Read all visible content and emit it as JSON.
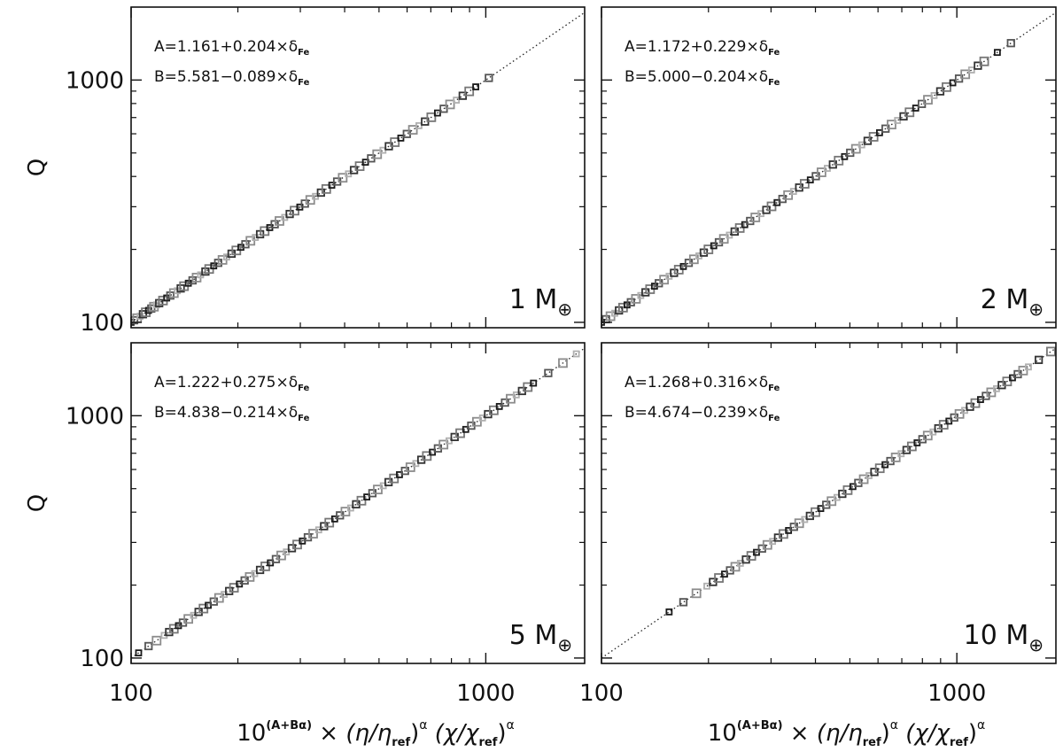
{
  "chart_data": [
    {
      "type": "scatter",
      "scale": "log-log",
      "panel_label": "1 M",
      "eq_a": "A=1.161+0.204×δ",
      "eq_b": "B=5.581−0.089×δ",
      "eq_sub": "Fe",
      "xlim": [
        100,
        1900
      ],
      "ylim": [
        95,
        2000
      ],
      "x_ticks": [
        100,
        1000
      ],
      "y_ticks": [
        100,
        1000
      ],
      "ylabel": "Q",
      "reference_line": "y = x (dotted)",
      "x": [
        100,
        102,
        104,
        106,
        108,
        110,
        112,
        114,
        116,
        118,
        120,
        123,
        126,
        129,
        132,
        135,
        138,
        141,
        145,
        149,
        153,
        157,
        162,
        166,
        171,
        176,
        181,
        186,
        192,
        198,
        204,
        210,
        217,
        224,
        231,
        238,
        246,
        254,
        262,
        271,
        280,
        289,
        299,
        309,
        320,
        331,
        343,
        355,
        368,
        381,
        395,
        410,
        425,
        441,
        458,
        475,
        494,
        513,
        533,
        554,
        576,
        599,
        623,
        648,
        674,
        702,
        731,
        761,
        793,
        826,
        861,
        898,
        937,
        1020
      ]
    },
    {
      "type": "scatter",
      "scale": "log-log",
      "panel_label": "2 M",
      "eq_a": "A=1.172+0.229×δ",
      "eq_b": "B=5.000−0.204×δ",
      "eq_sub": "Fe",
      "xlim": [
        100,
        1900
      ],
      "ylim": [
        95,
        2000
      ],
      "x_ticks": [
        100,
        1000
      ],
      "y_ticks": [
        100,
        1000
      ],
      "reference_line": "y = x (dotted)",
      "x": [
        100,
        103,
        106,
        109,
        112,
        115,
        118,
        121,
        125,
        129,
        133,
        137,
        141,
        145,
        150,
        155,
        160,
        165,
        170,
        176,
        182,
        188,
        194,
        200,
        207,
        214,
        221,
        229,
        237,
        245,
        253,
        262,
        271,
        281,
        291,
        301,
        312,
        323,
        335,
        347,
        360,
        373,
        387,
        401,
        416,
        432,
        448,
        465,
        483,
        501,
        520,
        540,
        561,
        583,
        606,
        630,
        655,
        681,
        708,
        736,
        766,
        797,
        829,
        863,
        898,
        935,
        974,
        1014,
        1056,
        1100,
        1146,
        1194,
        1300,
        1420
      ]
    },
    {
      "type": "scatter",
      "scale": "log-log",
      "panel_label": "5 M",
      "eq_a": "A=1.222+0.275×δ",
      "eq_b": "B=4.838−0.214×δ",
      "eq_sub": "Fe",
      "xlim": [
        100,
        1900
      ],
      "ylim": [
        95,
        2000
      ],
      "x_ticks": [
        100,
        1000
      ],
      "y_ticks": [
        100,
        1000
      ],
      "ylabel": "Q",
      "xlabel": "10^(A+Bα) × (η/η_ref)^α (χ/χ_ref)^α",
      "reference_line": "y = x (dotted)",
      "x": [
        105,
        112,
        118,
        124,
        128,
        132,
        136,
        140,
        145,
        150,
        155,
        160,
        165,
        171,
        177,
        183,
        189,
        195,
        202,
        209,
        216,
        223,
        231,
        239,
        247,
        256,
        265,
        274,
        284,
        294,
        304,
        315,
        326,
        338,
        350,
        362,
        375,
        388,
        402,
        416,
        431,
        446,
        462,
        479,
        496,
        514,
        532,
        551,
        571,
        592,
        613,
        635,
        658,
        682,
        707,
        733,
        760,
        788,
        817,
        847,
        878,
        910,
        944,
        979,
        1015,
        1053,
        1092,
        1133,
        1175,
        1219,
        1265,
        1313,
        1363,
        1500,
        1650,
        1800
      ]
    },
    {
      "type": "scatter",
      "scale": "log-log",
      "panel_label": "10 M",
      "eq_a": "A=1.268+0.316×δ",
      "eq_b": "B=4.674−0.239×δ",
      "eq_sub": "Fe",
      "xlim": [
        100,
        1900
      ],
      "ylim": [
        95,
        2000
      ],
      "x_ticks": [
        100,
        1000
      ],
      "y_ticks": [
        100,
        1000
      ],
      "xlabel": "10^(A+Bα) × (η/η_ref)^α (χ/χ_ref)^α",
      "reference_line": "y = x (dotted)",
      "x": [
        155,
        170,
        185,
        198,
        206,
        214,
        222,
        230,
        238,
        246,
        255,
        264,
        273,
        283,
        293,
        303,
        314,
        325,
        336,
        348,
        360,
        373,
        386,
        400,
        414,
        429,
        444,
        460,
        476,
        493,
        510,
        528,
        547,
        566,
        586,
        607,
        628,
        650,
        673,
        697,
        722,
        747,
        773,
        800,
        828,
        857,
        887,
        918,
        950,
        983,
        1017,
        1052,
        1089,
        1127,
        1166,
        1207,
        1249,
        1293,
        1338,
        1385,
        1434,
        1484,
        1536,
        1590,
        1700,
        1840
      ]
    }
  ],
  "shared_labels": {
    "y_tick_100": "100",
    "y_tick_1000": "1000",
    "x_tick_100": "100",
    "x_tick_1000": "1000",
    "ylabel": "Q",
    "unit_symbol": "⊕",
    "xlabel_prefix": "10",
    "xlabel_exp": "(A+Bα)",
    "xlabel_times": "×",
    "xlabel_eta": "(η/η",
    "xlabel_chi": "(χ/χ",
    "xlabel_ref": "ref",
    "xlabel_close": ")",
    "xlabel_alpha": "α"
  }
}
